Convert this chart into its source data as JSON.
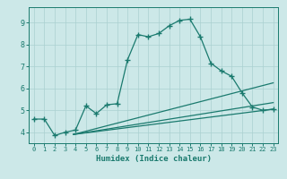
{
  "xlabel": "Humidex (Indice chaleur)",
  "background_color": "#cce8e8",
  "grid_color": "#aad0d0",
  "line_color": "#1a7a6e",
  "xlim": [
    -0.5,
    23.5
  ],
  "ylim": [
    3.5,
    9.7
  ],
  "xticks": [
    0,
    1,
    2,
    3,
    4,
    5,
    6,
    7,
    8,
    9,
    10,
    11,
    12,
    13,
    14,
    15,
    16,
    17,
    18,
    19,
    20,
    21,
    22,
    23
  ],
  "yticks": [
    4,
    5,
    6,
    7,
    8,
    9
  ],
  "series": [
    {
      "x": [
        0,
        1,
        2,
        3,
        4,
        5,
        6,
        7,
        8,
        9,
        10,
        11,
        12,
        13,
        14,
        15,
        16,
        17,
        18,
        19,
        20,
        21,
        22,
        23
      ],
      "y": [
        4.6,
        4.6,
        3.85,
        4.0,
        4.1,
        5.2,
        4.85,
        5.25,
        5.3,
        7.3,
        8.45,
        8.35,
        8.5,
        8.85,
        9.1,
        9.15,
        8.35,
        7.15,
        6.8,
        6.55,
        5.8,
        5.15,
        5.0,
        5.05
      ],
      "marker": "+",
      "markersize": 4,
      "linewidth": 0.9,
      "markeredgewidth": 1.0
    },
    {
      "x": [
        3.8,
        23
      ],
      "y": [
        3.9,
        6.25
      ],
      "marker": null,
      "linewidth": 0.9
    },
    {
      "x": [
        3.8,
        23
      ],
      "y": [
        3.9,
        5.35
      ],
      "marker": null,
      "linewidth": 0.9
    },
    {
      "x": [
        3.8,
        23
      ],
      "y": [
        3.9,
        5.05
      ],
      "marker": null,
      "linewidth": 0.9
    }
  ]
}
